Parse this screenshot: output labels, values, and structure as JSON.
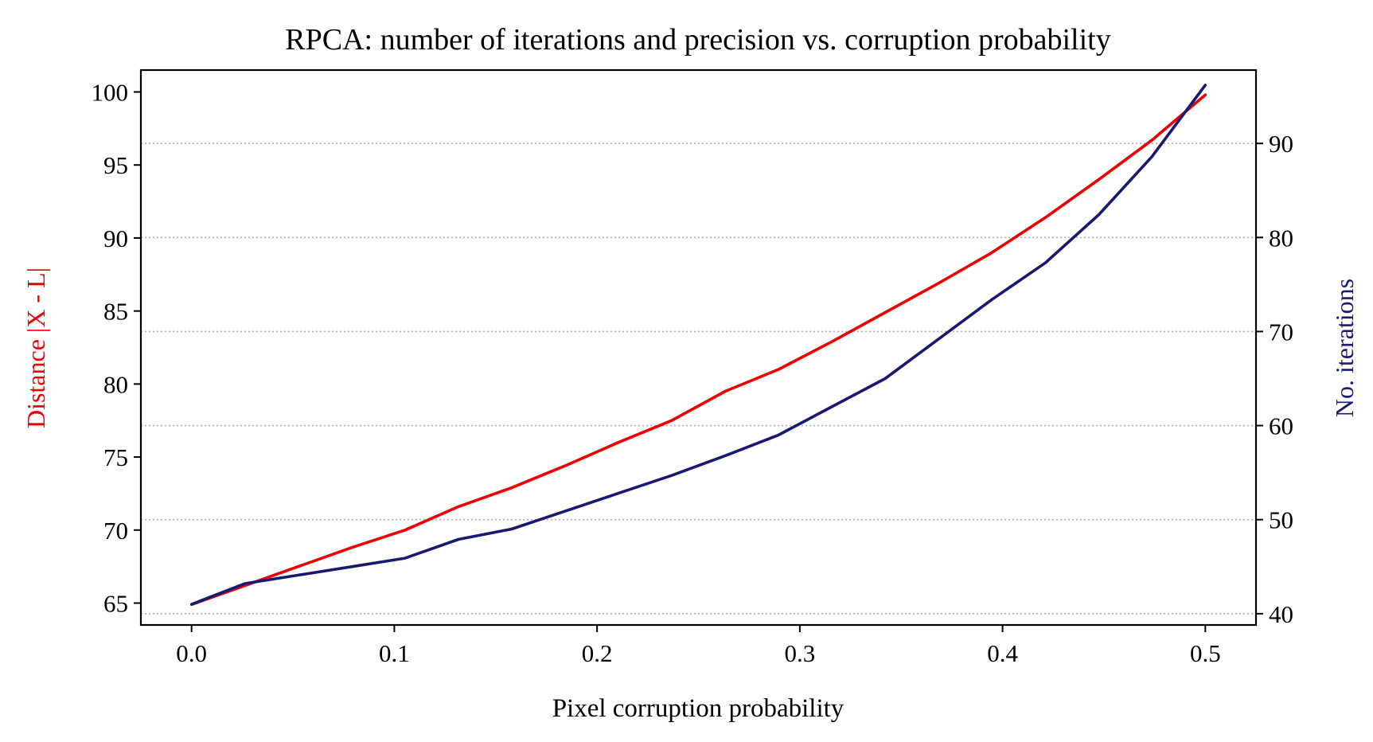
{
  "chart_data": {
    "type": "line",
    "title": "RPCA: number of iterations and precision vs. corruption probability",
    "xlabel": "Pixel corruption probability",
    "ylabel_left": "Distance |X - L|",
    "ylabel_right": "No. iterations",
    "xlim": [
      -0.025,
      0.525
    ],
    "ylim_left": [
      63.5,
      101.5
    ],
    "ylim_right": [
      38.8,
      97.8
    ],
    "xticks": [
      0.0,
      0.1,
      0.2,
      0.3,
      0.4,
      0.5
    ],
    "xtick_labels": [
      "0.0",
      "0.1",
      "0.2",
      "0.3",
      "0.4",
      "0.5"
    ],
    "yticks_left": [
      65,
      70,
      75,
      80,
      85,
      90,
      95,
      100
    ],
    "yticks_right": [
      40,
      50,
      60,
      70,
      80,
      90
    ],
    "grid": "horizontal-dotted-right-axis",
    "series": [
      {
        "axis": "left",
        "color": "#ee0000",
        "x": [
          0.0,
          0.0263,
          0.0526,
          0.0789,
          0.1053,
          0.1316,
          0.1579,
          0.1842,
          0.2105,
          0.2368,
          0.2632,
          0.2895,
          0.3158,
          0.3421,
          0.3684,
          0.3947,
          0.4211,
          0.4474,
          0.4737,
          0.5
        ],
        "values": [
          64.9,
          66.2,
          67.5,
          68.8,
          70.0,
          71.6,
          72.9,
          74.4,
          76.0,
          77.5,
          79.5,
          81.0,
          82.9,
          84.9,
          86.9,
          89.0,
          91.4,
          94.0,
          96.7,
          99.8
        ]
      },
      {
        "axis": "right",
        "color": "#191970",
        "x": [
          0.0,
          0.0263,
          0.0526,
          0.0789,
          0.1053,
          0.1316,
          0.1579,
          0.1842,
          0.2105,
          0.2368,
          0.2632,
          0.2895,
          0.3158,
          0.3421,
          0.3684,
          0.3947,
          0.4211,
          0.4474,
          0.4737,
          0.5
        ],
        "values": [
          41.0,
          43.2,
          44.1,
          45.0,
          45.9,
          47.9,
          49.0,
          50.9,
          52.8,
          54.7,
          56.8,
          59.0,
          62.0,
          65.0,
          69.2,
          73.4,
          77.3,
          82.4,
          88.6,
          96.2
        ]
      }
    ]
  }
}
